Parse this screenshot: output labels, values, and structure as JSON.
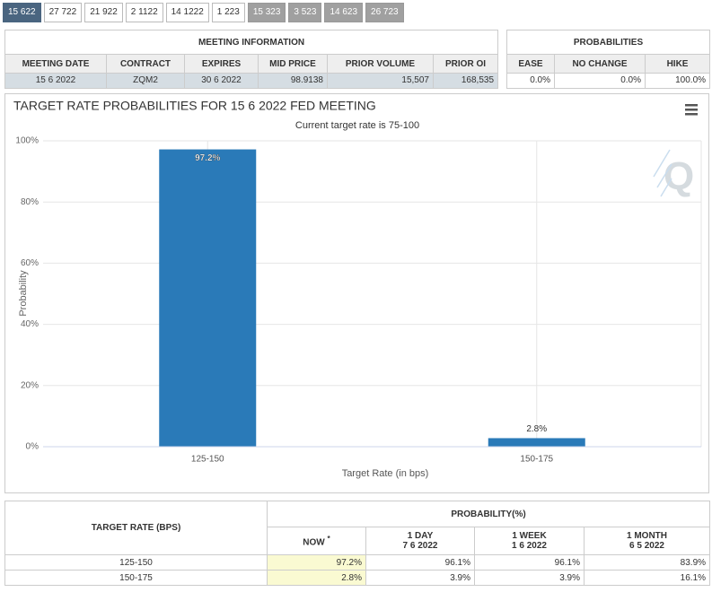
{
  "tabs": [
    "15 622",
    "27 722",
    "21 922",
    "2 1122",
    "14 1222",
    "1 223",
    "15 323",
    "3 523",
    "14 623",
    "26 723"
  ],
  "meeting_info": {
    "title": "MEETING INFORMATION",
    "columns": [
      "MEETING DATE",
      "CONTRACT",
      "EXPIRES",
      "MID PRICE",
      "PRIOR VOLUME",
      "PRIOR OI"
    ],
    "row": [
      "15 6 2022",
      "ZQM2",
      "30 6 2022",
      "98.9138",
      "15,507",
      "168,535"
    ]
  },
  "probabilities": {
    "title": "PROBABILITIES",
    "columns": [
      "EASE",
      "NO CHANGE",
      "HIKE"
    ],
    "row": [
      "0.0%",
      "0.0%",
      "100.0%"
    ]
  },
  "chart_data": {
    "type": "bar",
    "title": "TARGET RATE PROBABILITIES FOR 15 6 2022 FED MEETING",
    "subtitle": "Current target rate is 75-100",
    "x_label": "Target Rate (in bps)",
    "y_label": "Probability",
    "categories": [
      "125-150",
      "150-175"
    ],
    "values": [
      97.2,
      2.8
    ],
    "value_labels": [
      "97.2%",
      "2.8%"
    ],
    "color": "#2a7ab8",
    "ylim": [
      0,
      100
    ],
    "yticks": [
      {
        "value": 0,
        "label": "0%"
      },
      {
        "value": 20,
        "label": "20%"
      },
      {
        "value": 40,
        "label": "40%"
      },
      {
        "value": 60,
        "label": "60%"
      },
      {
        "value": 80,
        "label": "80%"
      },
      {
        "value": 100,
        "label": "100%"
      }
    ],
    "grid": true
  },
  "table": {
    "col0": "TARGET RATE (BPS)",
    "group": "PROBABILITY(%)",
    "now": {
      "label": "NOW",
      "note": "*"
    },
    "periods": [
      {
        "label": "1 DAY",
        "date": "7 6 2022"
      },
      {
        "label": "1 WEEK",
        "date": "1 6 2022"
      },
      {
        "label": "1 MONTH",
        "date": "6 5 2022"
      }
    ],
    "rows": [
      [
        "125-150",
        "97.2%",
        "96.1%",
        "96.1%",
        "83.9%"
      ],
      [
        "150-175",
        "2.8%",
        "3.9%",
        "3.9%",
        "16.1%"
      ]
    ]
  }
}
